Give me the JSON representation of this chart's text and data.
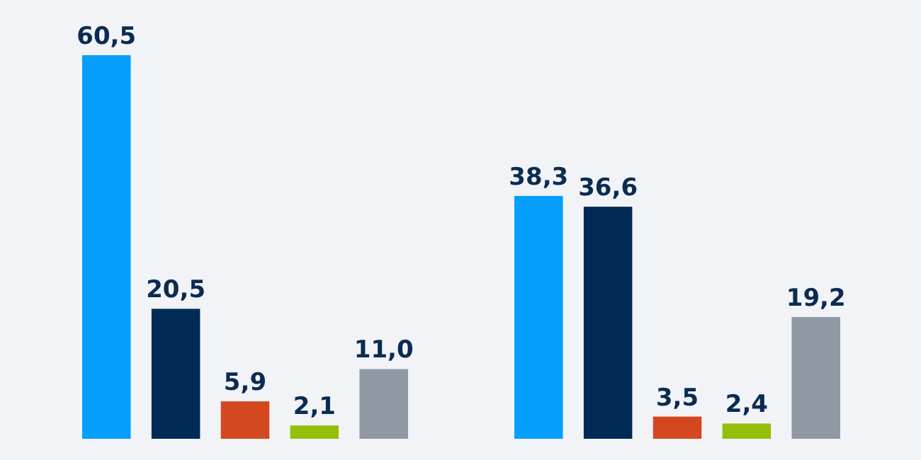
{
  "chart_data": {
    "type": "bar",
    "categories": [
      null,
      null
    ],
    "series": [
      {
        "color": "#049ffd",
        "values": [
          60.5,
          38.3
        ],
        "value_labels": [
          "60,5",
          "38,3"
        ]
      },
      {
        "color": "#002b57",
        "values": [
          20.5,
          36.6
        ],
        "value_labels": [
          "20,5",
          "36,6"
        ]
      },
      {
        "color": "#d4481f",
        "values": [
          5.9,
          3.5
        ],
        "value_labels": [
          "5,9",
          "3,5"
        ]
      },
      {
        "color": "#94bf09",
        "values": [
          2.1,
          2.4
        ],
        "value_labels": [
          "2,1",
          "2,4"
        ]
      },
      {
        "color": "#8f98a3",
        "values": [
          11.0,
          19.2
        ],
        "value_labels": [
          "11,0",
          "19,2"
        ]
      }
    ]
  }
}
